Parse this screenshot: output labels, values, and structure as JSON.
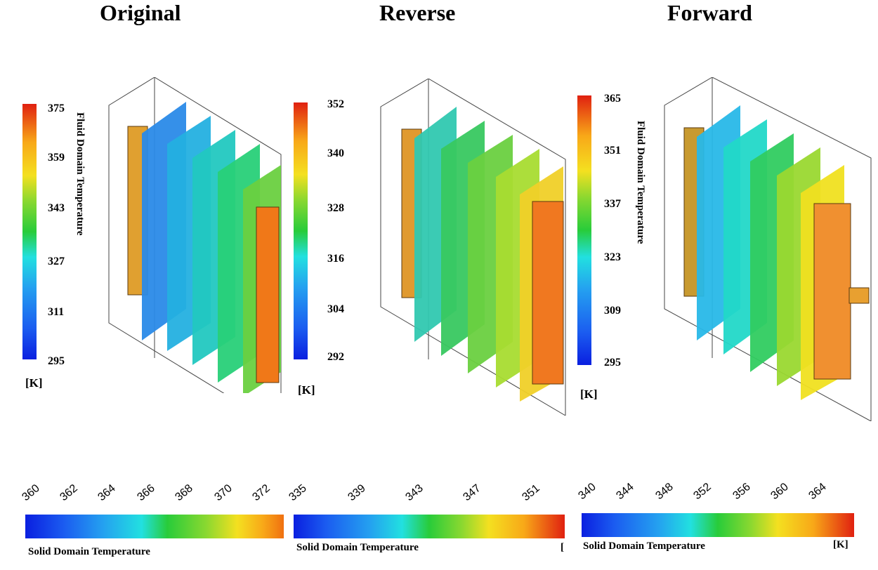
{
  "panels": {
    "original": {
      "title": "Original"
    },
    "reverse": {
      "title": "Reverse"
    },
    "forward": {
      "title": "Forward"
    }
  },
  "colorbars": {
    "original_solid_v": {
      "ticks": [
        "375",
        "359",
        "343",
        "327",
        "311",
        "295"
      ],
      "unit": "[K]"
    },
    "original_fluid_v": {
      "ticks": [
        "352",
        "340",
        "328",
        "316",
        "304",
        "292"
      ],
      "unit": "[K]",
      "label": "Fluid Domain Temperature"
    },
    "reverse_fluid_v": {
      "ticks": [
        "365",
        "351",
        "337",
        "323",
        "309",
        "295"
      ],
      "unit": "[K]",
      "label": "Fluid Domain Temperature"
    },
    "original_solid_h": {
      "ticks": [
        "360",
        "362",
        "364",
        "366",
        "368",
        "370",
        "372"
      ],
      "label": "Solid Domain Temperature"
    },
    "reverse_solid_h": {
      "ticks": [
        "335",
        "339",
        "343",
        "347",
        "351"
      ],
      "label": "Solid Domain Temperature",
      "unit": "["
    },
    "forward_solid_h": {
      "ticks": [
        "340",
        "344",
        "348",
        "352",
        "356",
        "360",
        "364"
      ],
      "label": "Solid Domain Temperature",
      "unit": "[K]"
    }
  },
  "colors": {
    "jet": [
      "#0a1fe0",
      "#1b5cf0",
      "#24a0f0",
      "#22e0e0",
      "#22d08a",
      "#28cc3a",
      "#8ad830",
      "#d8e828",
      "#f4e020",
      "#f8a818",
      "#f06818",
      "#e02010"
    ]
  }
}
